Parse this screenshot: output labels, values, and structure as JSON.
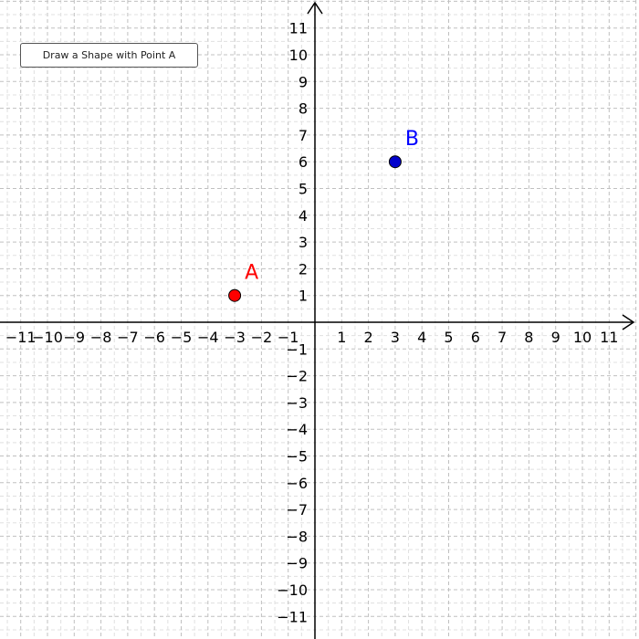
{
  "toolbar": {
    "draw_button_label": "Draw a Shape with Point A"
  },
  "axes": {
    "x_ticks": [
      "−11",
      "−10",
      "−9",
      "−8",
      "−7",
      "−6",
      "−5",
      "−4",
      "−3",
      "−2",
      "−1",
      "1",
      "2",
      "3",
      "4",
      "5",
      "6",
      "7",
      "8",
      "9",
      "10",
      "11"
    ],
    "y_ticks": [
      "11",
      "10",
      "9",
      "8",
      "7",
      "6",
      "5",
      "4",
      "3",
      "2",
      "1",
      "−1",
      "−2",
      "−3",
      "−4",
      "−5",
      "−6",
      "−7",
      "−8",
      "−9",
      "−10",
      "−11"
    ],
    "x_range": [
      -11.8,
      11.9
    ],
    "y_range": [
      -11.8,
      12
    ],
    "grid": true,
    "grid_style": "dashed"
  },
  "points": [
    {
      "label": "A",
      "x": -3,
      "y": 1,
      "color": "#ff0000",
      "text_color": "#ff0000"
    },
    {
      "label": "B",
      "x": 3,
      "y": 6,
      "color": "#0000cc",
      "text_color": "#0000ff"
    }
  ]
}
